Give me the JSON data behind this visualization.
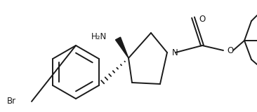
{
  "bg_color": "#ffffff",
  "line_color": "#1a1a1a",
  "line_width": 1.4,
  "figsize": [
    3.66,
    1.6
  ],
  "dpi": 100,
  "labels": {
    "Br": {
      "text": "Br",
      "fontsize": 8.5
    },
    "H2N": {
      "text": "H₂N",
      "fontsize": 8.5
    },
    "N": {
      "text": "N",
      "fontsize": 8.5
    },
    "O_carbonyl": {
      "text": "O",
      "fontsize": 8.5
    },
    "O_ester": {
      "text": "O",
      "fontsize": 8.5
    }
  }
}
